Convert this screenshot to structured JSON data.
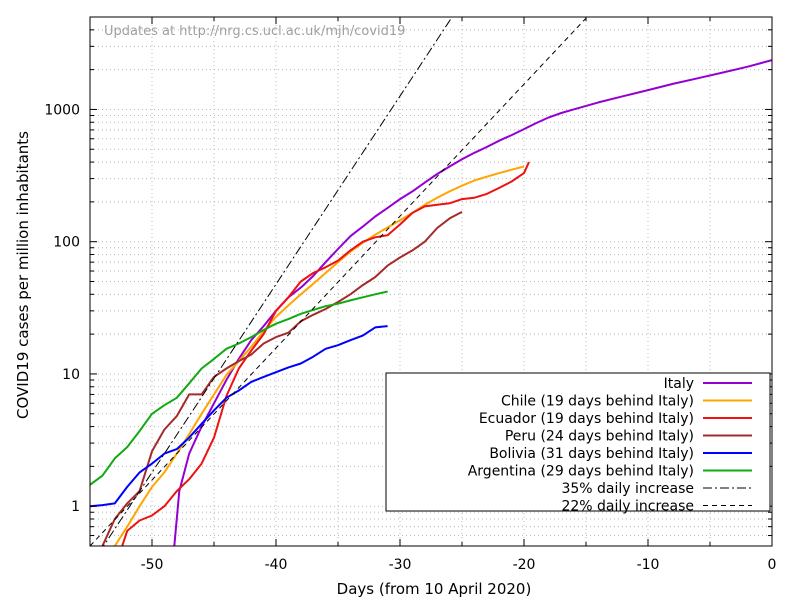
{
  "chart_data": {
    "type": "line",
    "title": "",
    "note": "Updates at http://nrg.cs.ucl.ac.uk/mjh/covid19",
    "xlabel": "Days (from 10 April 2020)",
    "ylabel": "COVID19 cases per million inhabitants",
    "xlim": [
      -55,
      0
    ],
    "ylim": [
      0.5,
      5000
    ],
    "yscale": "log",
    "grid": true,
    "legend_position": "bottom-right",
    "x_ticks": [
      {
        "value": -50,
        "label": "-50"
      },
      {
        "value": -40,
        "label": "-40"
      },
      {
        "value": -30,
        "label": "-30"
      },
      {
        "value": -20,
        "label": "-20"
      },
      {
        "value": -10,
        "label": "-10"
      },
      {
        "value": 0,
        "label": "0"
      }
    ],
    "y_ticks": [
      {
        "value": 1,
        "label": "1"
      },
      {
        "value": 10,
        "label": "10"
      },
      {
        "value": 100,
        "label": "100"
      },
      {
        "value": 1000,
        "label": "1000"
      }
    ],
    "series": [
      {
        "name": "Italy",
        "color": "#9400d3",
        "dash": "",
        "points": [
          [
            -48.2,
            0.5
          ],
          [
            -47.8,
            1.3
          ],
          [
            -47,
            2.5
          ],
          [
            -46,
            4
          ],
          [
            -45,
            6
          ],
          [
            -44,
            9
          ],
          [
            -43,
            13
          ],
          [
            -42,
            18
          ],
          [
            -41,
            23
          ],
          [
            -40,
            30
          ],
          [
            -39,
            38
          ],
          [
            -38,
            45
          ],
          [
            -37,
            55
          ],
          [
            -36,
            70
          ],
          [
            -35,
            88
          ],
          [
            -34,
            110
          ],
          [
            -33,
            130
          ],
          [
            -32,
            155
          ],
          [
            -31,
            180
          ],
          [
            -30,
            210
          ],
          [
            -29,
            240
          ],
          [
            -28,
            280
          ],
          [
            -27,
            325
          ],
          [
            -26,
            370
          ],
          [
            -25,
            420
          ],
          [
            -24,
            470
          ],
          [
            -23,
            520
          ],
          [
            -22,
            580
          ],
          [
            -21,
            640
          ],
          [
            -20,
            710
          ],
          [
            -19,
            790
          ],
          [
            -18,
            870
          ],
          [
            -17,
            940
          ],
          [
            -16,
            1000
          ],
          [
            -14,
            1130
          ],
          [
            -12,
            1260
          ],
          [
            -10,
            1400
          ],
          [
            -8,
            1560
          ],
          [
            -6,
            1720
          ],
          [
            -4,
            1900
          ],
          [
            -2,
            2100
          ],
          [
            0,
            2360
          ]
        ]
      },
      {
        "name": "Chile (19 days behind Italy)",
        "color": "#ffa500",
        "dash": "",
        "points": [
          [
            -53,
            0.5
          ],
          [
            -52,
            0.7
          ],
          [
            -51,
            1.0
          ],
          [
            -50,
            1.4
          ],
          [
            -49,
            1.8
          ],
          [
            -48,
            2.5
          ],
          [
            -47,
            3.5
          ],
          [
            -46,
            5
          ],
          [
            -45,
            7
          ],
          [
            -44,
            9.8
          ],
          [
            -43,
            12.5
          ],
          [
            -42,
            16
          ],
          [
            -41,
            21
          ],
          [
            -40,
            27
          ],
          [
            -39,
            33
          ],
          [
            -38,
            40
          ],
          [
            -37,
            48
          ],
          [
            -36,
            58
          ],
          [
            -35,
            70
          ],
          [
            -34,
            84
          ],
          [
            -33,
            98
          ],
          [
            -32,
            113
          ],
          [
            -31,
            128
          ],
          [
            -30,
            145
          ],
          [
            -29,
            165
          ],
          [
            -28,
            190
          ],
          [
            -27,
            215
          ],
          [
            -26,
            240
          ],
          [
            -25,
            265
          ],
          [
            -24,
            290
          ],
          [
            -23,
            310
          ],
          [
            -22,
            330
          ],
          [
            -21,
            350
          ],
          [
            -20,
            370
          ]
        ]
      },
      {
        "name": "Ecuador (19 days behind Italy)",
        "color": "#ee1111",
        "dash": "",
        "points": [
          [
            -52.4,
            0.5
          ],
          [
            -52,
            0.65
          ],
          [
            -51,
            0.78
          ],
          [
            -50,
            0.85
          ],
          [
            -49,
            1.0
          ],
          [
            -48,
            1.3
          ],
          [
            -47,
            1.6
          ],
          [
            -46,
            2.1
          ],
          [
            -45,
            3.3
          ],
          [
            -44,
            6.8
          ],
          [
            -43,
            11
          ],
          [
            -42,
            15
          ],
          [
            -41,
            20
          ],
          [
            -40,
            30
          ],
          [
            -39,
            38
          ],
          [
            -38,
            50
          ],
          [
            -37,
            58
          ],
          [
            -36,
            64
          ],
          [
            -35,
            72
          ],
          [
            -34,
            86
          ],
          [
            -33,
            100
          ],
          [
            -32,
            108
          ],
          [
            -31,
            112
          ],
          [
            -30,
            135
          ],
          [
            -29,
            165
          ],
          [
            -28,
            185
          ],
          [
            -27,
            190
          ],
          [
            -26,
            195
          ],
          [
            -25,
            210
          ],
          [
            -24,
            215
          ],
          [
            -23,
            230
          ],
          [
            -22,
            255
          ],
          [
            -21,
            285
          ],
          [
            -20,
            330
          ],
          [
            -19.6,
            400
          ]
        ]
      },
      {
        "name": "Peru (24 days behind Italy)",
        "color": "#a52a2a",
        "dash": "",
        "points": [
          [
            -54,
            0.5
          ],
          [
            -53,
            0.8
          ],
          [
            -52,
            1.05
          ],
          [
            -51,
            1.3
          ],
          [
            -50,
            2.6
          ],
          [
            -49,
            3.8
          ],
          [
            -48,
            4.8
          ],
          [
            -47,
            7
          ],
          [
            -46,
            7
          ],
          [
            -45,
            9.5
          ],
          [
            -44,
            11
          ],
          [
            -43,
            12.5
          ],
          [
            -42,
            14
          ],
          [
            -41,
            17
          ],
          [
            -40,
            19
          ],
          [
            -39,
            20.5
          ],
          [
            -38,
            25
          ],
          [
            -37,
            28
          ],
          [
            -36,
            31
          ],
          [
            -35,
            35
          ],
          [
            -34,
            40
          ],
          [
            -33,
            47
          ],
          [
            -32,
            54
          ],
          [
            -31,
            66
          ],
          [
            -30,
            76
          ],
          [
            -29,
            86
          ],
          [
            -28,
            100
          ],
          [
            -27,
            127
          ],
          [
            -26,
            150
          ],
          [
            -25,
            168
          ]
        ]
      },
      {
        "name": "Bolivia (31 days behind Italy)",
        "color": "#0000ff",
        "dash": "",
        "points": [
          [
            -55,
            1.0
          ],
          [
            -54,
            1.02
          ],
          [
            -53,
            1.05
          ],
          [
            -52,
            1.4
          ],
          [
            -51,
            1.8
          ],
          [
            -50,
            2.1
          ],
          [
            -49,
            2.5
          ],
          [
            -48,
            2.7
          ],
          [
            -47,
            3.3
          ],
          [
            -46,
            4.2
          ],
          [
            -45,
            5.3
          ],
          [
            -44,
            6.6
          ],
          [
            -43,
            7.5
          ],
          [
            -42,
            8.7
          ],
          [
            -41,
            9.5
          ],
          [
            -40,
            10.3
          ],
          [
            -39,
            11.2
          ],
          [
            -38,
            12
          ],
          [
            -37,
            13.5
          ],
          [
            -36,
            15.5
          ],
          [
            -35,
            16.5
          ],
          [
            -34,
            18
          ],
          [
            -33,
            19.5
          ],
          [
            -32,
            22.5
          ],
          [
            -31,
            23
          ]
        ]
      },
      {
        "name": "Argentina (29 days behind Italy)",
        "color": "#11aa11",
        "dash": "",
        "points": [
          [
            -55,
            1.45
          ],
          [
            -54,
            1.7
          ],
          [
            -53,
            2.3
          ],
          [
            -52,
            2.8
          ],
          [
            -51,
            3.7
          ],
          [
            -50,
            5.0
          ],
          [
            -49,
            5.8
          ],
          [
            -48,
            6.6
          ],
          [
            -47,
            8.5
          ],
          [
            -46,
            11
          ],
          [
            -45,
            13
          ],
          [
            -44,
            15.5
          ],
          [
            -43,
            17
          ],
          [
            -42,
            19
          ],
          [
            -41,
            21.5
          ],
          [
            -40,
            24
          ],
          [
            -39,
            26
          ],
          [
            -38,
            28.5
          ],
          [
            -37,
            30.5
          ],
          [
            -36,
            32.5
          ],
          [
            -35,
            34
          ],
          [
            -34,
            36
          ],
          [
            -33,
            38
          ],
          [
            -32,
            40
          ],
          [
            -31,
            42
          ]
        ]
      },
      {
        "name": "35% daily increase",
        "color": "#000000",
        "dash": "9,3,2,3",
        "points": [
          [
            -55,
            0.35
          ],
          [
            -25.8,
            5000
          ]
        ]
      },
      {
        "name": "22% daily increase",
        "color": "#000000",
        "dash": "5,4",
        "points": [
          [
            -55,
            0.5
          ],
          [
            -15,
            4900
          ]
        ]
      }
    ]
  }
}
